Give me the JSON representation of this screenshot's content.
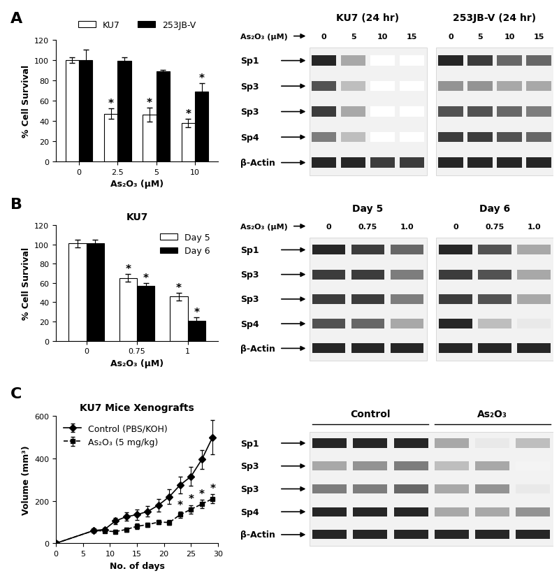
{
  "chart_data": [
    {
      "panel": "A",
      "type": "bar",
      "xlabel": "As₂O₃ (μM)",
      "ylabel": "% Cell Survival",
      "categories": [
        "0",
        "2.5",
        "5",
        "10"
      ],
      "series": [
        {
          "name": "KU7",
          "color": "#ffffff",
          "values": [
            100,
            47,
            46,
            38
          ],
          "errors": [
            3,
            5,
            7,
            4
          ]
        },
        {
          "name": "253JB-V",
          "color": "#000000",
          "values": [
            100,
            99,
            89,
            69
          ],
          "errors": [
            10,
            4,
            1,
            8
          ]
        }
      ],
      "annotations": [
        {
          "text": "*",
          "series": "KU7",
          "category": "2.5"
        },
        {
          "text": "*",
          "series": "KU7",
          "category": "5"
        },
        {
          "text": "*",
          "series": "KU7",
          "category": "10"
        },
        {
          "text": "*",
          "series": "253JB-V",
          "category": "10"
        }
      ],
      "ylim": [
        0,
        120
      ],
      "yticks": [
        0,
        20,
        40,
        60,
        80,
        100,
        120
      ],
      "legend": "top"
    },
    {
      "panel": "B",
      "type": "bar",
      "title": "KU7",
      "xlabel": "As₂O₃ (μM)",
      "ylabel": "% Cell Survival",
      "categories": [
        "0",
        "0.75",
        "1"
      ],
      "series": [
        {
          "name": "Day 5",
          "color": "#ffffff",
          "values": [
            101,
            65,
            46
          ],
          "errors": [
            4,
            4,
            4
          ]
        },
        {
          "name": "Day 6",
          "color": "#000000",
          "values": [
            101,
            57,
            21
          ],
          "errors": [
            4,
            3,
            3
          ]
        }
      ],
      "annotations": [
        {
          "text": "*",
          "series": "Day 5",
          "category": "0.75"
        },
        {
          "text": "*",
          "series": "Day 6",
          "category": "0.75"
        },
        {
          "text": "*",
          "series": "Day 5",
          "category": "1"
        },
        {
          "text": "*",
          "series": "Day 6",
          "category": "1"
        }
      ],
      "ylim": [
        0,
        120
      ],
      "yticks": [
        0,
        20,
        40,
        60,
        80,
        100,
        120
      ],
      "legend": "upper right"
    },
    {
      "panel": "C",
      "type": "line",
      "title": "KU7 Mice Xenografts",
      "xlabel": "No. of days",
      "ylabel": "Volume (mm³)",
      "x": [
        0,
        7,
        9,
        11,
        13,
        15,
        17,
        19,
        21,
        23,
        25,
        27,
        29
      ],
      "series": [
        {
          "name": "Control (PBS/KOH)",
          "color": "#000000",
          "marker": "diamond",
          "line_style": "solid",
          "values": [
            0,
            60,
            65,
            105,
            125,
            135,
            150,
            180,
            220,
            275,
            315,
            395,
            500
          ],
          "errors": [
            0,
            8,
            10,
            15,
            20,
            25,
            25,
            30,
            35,
            40,
            45,
            45,
            80
          ]
        },
        {
          "name": "As₂O₃ (5 mg/kg)",
          "color": "#000000",
          "marker": "square",
          "line_style": "dashed",
          "values": [
            0,
            60,
            58,
            55,
            65,
            80,
            88,
            100,
            98,
            135,
            160,
            185,
            210
          ],
          "errors": [
            0,
            5,
            5,
            8,
            10,
            12,
            10,
            10,
            12,
            15,
            20,
            20,
            20
          ]
        }
      ],
      "annotations": [
        {
          "text": "*",
          "series": "As₂O₃ (5 mg/kg)",
          "x": 23
        },
        {
          "text": "*",
          "series": "As₂O₃ (5 mg/kg)",
          "x": 25
        },
        {
          "text": "*",
          "series": "As₂O₃ (5 mg/kg)",
          "x": 27
        },
        {
          "text": "*",
          "series": "As₂O₃ (5 mg/kg)",
          "x": 29
        }
      ],
      "xlim": [
        0,
        30
      ],
      "xticks": [
        0,
        5,
        10,
        15,
        20,
        25,
        30
      ],
      "ylim": [
        0,
        600
      ],
      "yticks": [
        0,
        200,
        400,
        600
      ],
      "legend": "upper left"
    }
  ],
  "blot_panels": [
    {
      "lane_header": "As₂O₃ (μM)",
      "row_labels": [
        "Sp1",
        "Sp3",
        "Sp3",
        "Sp4",
        "β-Actin"
      ],
      "blots": [
        {
          "title": "KU7 (24 hr)",
          "lanes": [
            "0",
            "5",
            "10",
            "15"
          ],
          "band_intensity": [
            [
              1.0,
              0.4,
              0.0,
              0.0
            ],
            [
              0.8,
              0.3,
              0.0,
              0.0
            ],
            [
              0.9,
              0.4,
              0.0,
              0.0
            ],
            [
              0.6,
              0.3,
              0.0,
              0.0
            ],
            [
              1.0,
              1.0,
              0.9,
              0.9
            ]
          ]
        },
        {
          "title": "253JB-V (24 hr)",
          "lanes": [
            "0",
            "5",
            "10",
            "15"
          ],
          "band_intensity": [
            [
              1.0,
              0.9,
              0.7,
              0.7
            ],
            [
              0.5,
              0.5,
              0.4,
              0.4
            ],
            [
              0.8,
              0.8,
              0.7,
              0.6
            ],
            [
              0.9,
              0.9,
              0.8,
              0.7
            ],
            [
              1.0,
              1.0,
              1.0,
              1.0
            ]
          ]
        }
      ]
    },
    {
      "lane_header": "As₂O₃ (μM)",
      "row_labels": [
        "Sp1",
        "Sp3",
        "Sp3",
        "Sp4",
        "β-Actin"
      ],
      "blots": [
        {
          "title": "Day 5",
          "lanes": [
            "0",
            "0.75",
            "1.0"
          ],
          "band_intensity": [
            [
              1.0,
              0.9,
              0.7
            ],
            [
              0.9,
              0.9,
              0.6
            ],
            [
              0.9,
              0.9,
              0.6
            ],
            [
              0.8,
              0.7,
              0.4
            ],
            [
              1.0,
              1.0,
              1.0
            ]
          ]
        },
        {
          "title": "Day 6",
          "lanes": [
            "0",
            "0.75",
            "1.0"
          ],
          "band_intensity": [
            [
              1.0,
              0.8,
              0.4
            ],
            [
              0.9,
              0.8,
              0.4
            ],
            [
              0.9,
              0.8,
              0.4
            ],
            [
              1.0,
              0.3,
              0.1
            ],
            [
              1.0,
              1.0,
              1.0
            ]
          ]
        }
      ]
    },
    {
      "row_labels": [
        "Sp1",
        "Sp3",
        "Sp3",
        "Sp4",
        "β-Actin"
      ],
      "blots": [
        {
          "lane_groups": [
            "Control",
            "Control",
            "Control",
            "As₂O₃",
            "As₂O₃",
            "As₂O₃"
          ],
          "band_intensity": [
            [
              1.0,
              1.0,
              1.0,
              0.4,
              0.1,
              0.3
            ],
            [
              0.4,
              0.5,
              0.6,
              0.3,
              0.4,
              0.05
            ],
            [
              0.6,
              0.6,
              0.7,
              0.4,
              0.5,
              0.1
            ],
            [
              1.0,
              1.0,
              1.0,
              0.4,
              0.4,
              0.5
            ],
            [
              1.0,
              1.0,
              1.0,
              1.0,
              1.0,
              1.0
            ]
          ]
        }
      ]
    }
  ]
}
